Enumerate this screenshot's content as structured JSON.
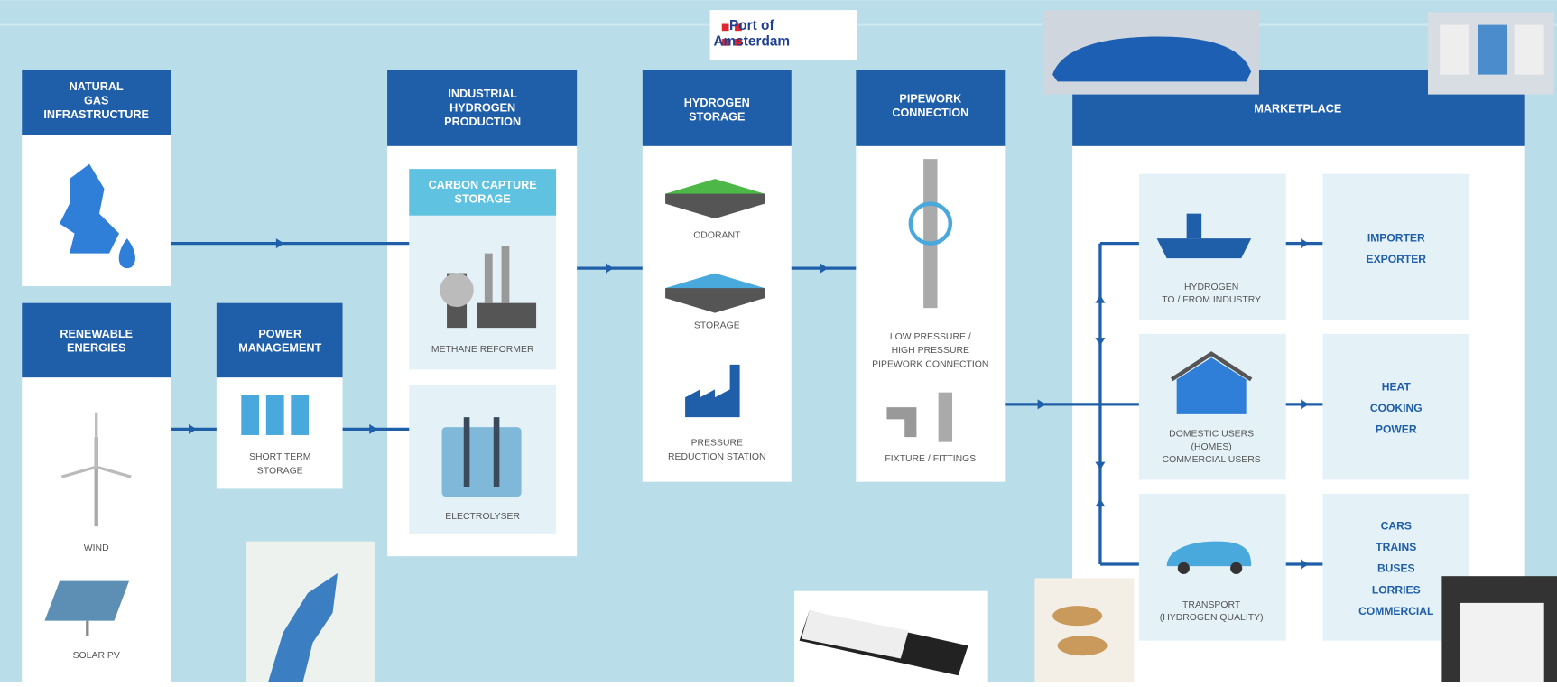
{
  "logo": [
    "Port of",
    "Amsterdam"
  ],
  "stages": [
    {
      "title": [
        "NATURAL",
        "GAS",
        "INFRASTRUCTURE"
      ]
    },
    {
      "title": [
        "RENEWABLE",
        "ENERGIES"
      ],
      "items": [
        {
          "label": [
            "WIND"
          ]
        },
        {
          "label": [
            "SOLAR PV"
          ]
        }
      ]
    },
    {
      "title": [
        "POWER",
        "MANAGEMENT"
      ],
      "items": [
        {
          "label": [
            "SHORT TERM",
            "STORAGE"
          ]
        }
      ]
    },
    {
      "title": [
        "INDUSTRIAL",
        "HYDROGEN",
        "PRODUCTION"
      ],
      "items": [
        {
          "label": [
            "CARBON CAPTURE",
            "STORAGE"
          ]
        },
        {
          "label": [
            "METHANE REFORMER"
          ]
        },
        {
          "label": [
            "ELECTROLYSER"
          ]
        }
      ]
    },
    {
      "title": [
        "HYDROGEN",
        "STORAGE"
      ],
      "items": [
        {
          "label": [
            "ODORANT"
          ]
        },
        {
          "label": [
            "STORAGE"
          ]
        },
        {
          "label": [
            "PRESSURE",
            "REDUCTION STATION"
          ]
        }
      ]
    },
    {
      "title": [
        "PIPEWORK",
        "CONNECTION"
      ],
      "items": [
        {
          "label": [
            "LOW PRESSURE /",
            "HIGH PRESSURE",
            "PIPEWORK CONNECTION"
          ]
        },
        {
          "label": [
            "FIXTURE / FITTINGS"
          ]
        }
      ]
    }
  ],
  "marketplace": {
    "title": "MARKETPLACE",
    "rows": [
      {
        "users": [
          "HYDROGEN",
          "TO / FROM INDUSTRY"
        ],
        "uses": [
          "IMPORTER",
          "EXPORTER"
        ]
      },
      {
        "users": [
          "DOMESTIC USERS",
          "(HOMES)",
          "COMMERCIAL USERS"
        ],
        "uses": [
          "HEAT",
          "COOKING",
          "POWER"
        ]
      },
      {
        "users": [
          "TRANSPORT",
          "(HYDROGEN QUALITY)"
        ],
        "uses": [
          "CARS",
          "TRAINS",
          "BUSES",
          "LORRIES",
          "COMMERCIAL"
        ]
      }
    ]
  }
}
